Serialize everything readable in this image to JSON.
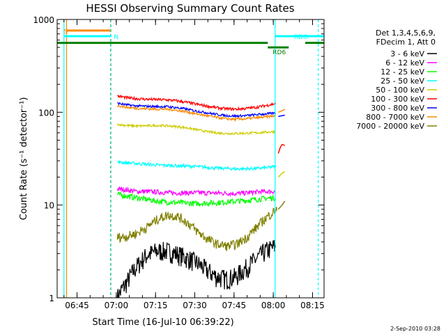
{
  "chart_data": {
    "type": "line",
    "title": "HESSI Observing Summary Count Rates",
    "xlabel": "Start Time (16-Jul-10 06:39:22)",
    "ylabel": "Count Rate (s⁻¹ detector⁻¹)",
    "yscale": "log",
    "ylim": [
      1,
      1000
    ],
    "xlim_minutes": [
      -2,
      100
    ],
    "x_ticks": [
      {
        "label": "06:45",
        "min": 5.6
      },
      {
        "label": "07:00",
        "min": 20.6
      },
      {
        "label": "07:15",
        "min": 35.6
      },
      {
        "label": "07:30",
        "min": 50.6
      },
      {
        "label": "07:45",
        "min": 65.6
      },
      {
        "label": "08:00",
        "min": 80.6
      },
      {
        "label": "08:15",
        "min": 95.6
      }
    ],
    "y_ticks": [
      {
        "label": "1",
        "value": 1
      },
      {
        "label": "10",
        "value": 10
      },
      {
        "label": "100",
        "value": 100
      },
      {
        "label": "1000",
        "value": 1000
      }
    ],
    "legend": {
      "placement": "right",
      "header": [
        "Det 1,3,4,5,6,9,",
        "FDecim 1, Att 0"
      ]
    },
    "series": [
      {
        "name": "3 - 6 keV",
        "color": "#000000",
        "start": 21,
        "end": 81.5,
        "values": [
          1.0,
          1.5,
          2.2,
          2.9,
          3.2,
          3.2,
          3.0,
          2.7,
          2.4,
          2.0,
          1.7,
          1.6,
          1.7,
          2.1,
          2.6,
          3.2,
          3.6
        ],
        "spread": 0.25
      },
      {
        "name": "6 - 12 keV",
        "color": "#ff00ff",
        "start": 21,
        "end": 81.5,
        "values": [
          15,
          14.5,
          14,
          14,
          13.8,
          13.6,
          13.5,
          13.5,
          13.6,
          13.5,
          13.5,
          13.4,
          13.3,
          13.5,
          13.8,
          14,
          14
        ],
        "spread": 0.06
      },
      {
        "name": "12 - 25 keV",
        "color": "#00ff00",
        "start": 21,
        "end": 81.5,
        "values": [
          13,
          12.5,
          12,
          11.5,
          11,
          10.8,
          10.6,
          10.5,
          10.4,
          10.5,
          10.6,
          10.8,
          11,
          11.2,
          11.5,
          11.8,
          12
        ],
        "spread": 0.07
      },
      {
        "name": "25 - 50 keV",
        "color": "#00ffff",
        "start": 21,
        "end": 81.5,
        "values": [
          29,
          28.5,
          28,
          27.5,
          27,
          26.8,
          26.5,
          26.3,
          26,
          25.5,
          25,
          24.8,
          24.5,
          24.6,
          24.8,
          25.2,
          26
        ],
        "spread": 0.04
      },
      {
        "name": "50 - 100 keV",
        "color": "#cccc00",
        "start": 21,
        "end": 81.5,
        "values": [
          74,
          72,
          71,
          71.5,
          72,
          71.5,
          70,
          68,
          65,
          62,
          60,
          59,
          59,
          59.5,
          60,
          61,
          62
        ],
        "spread": 0.03
      },
      {
        "name": "100 - 300 keV",
        "color": "#ff0000",
        "start": 21,
        "end": 81.5,
        "values": [
          150,
          143,
          140,
          138,
          137,
          136,
          133,
          128,
          122,
          117,
          112,
          109,
          108,
          110,
          113,
          118,
          124
        ],
        "spread": 0.035
      },
      {
        "name": "300 - 800 keV",
        "color": "#0000ff",
        "start": 21,
        "end": 81.5,
        "values": [
          125,
          120,
          117,
          116,
          115,
          115,
          112,
          108,
          103,
          99,
          95,
          92,
          91,
          92,
          94,
          96,
          98
        ],
        "spread": 0.03
      },
      {
        "name": "800 - 7000 keV",
        "color": "#ff8800",
        "start": 21,
        "end": 81.5,
        "values": [
          118,
          113,
          110,
          109,
          108,
          108,
          105,
          101,
          96,
          92,
          88,
          85,
          84,
          85,
          87,
          89,
          92
        ],
        "spread": 0.03
      },
      {
        "name": "7000 - 20000 keV",
        "color": "#808000",
        "start": 21,
        "end": 82,
        "values": [
          4.5,
          4.6,
          5,
          5.8,
          7.0,
          7.8,
          7.6,
          6.5,
          5.2,
          4.3,
          3.8,
          3.6,
          3.8,
          4.5,
          5.8,
          7.4,
          9.0
        ],
        "spread": 0.12
      }
    ],
    "tails": [
      {
        "name": "100 - 300 keV",
        "color": "#ff0000",
        "points": [
          [
            82.5,
            36
          ],
          [
            83.3,
            42
          ],
          [
            84,
            45
          ],
          [
            85,
            44
          ]
        ]
      },
      {
        "name": "800 - 7000 keV",
        "color": "#ff8800",
        "points": [
          [
            82.5,
            100
          ],
          [
            84,
            104
          ],
          [
            85,
            108
          ]
        ]
      },
      {
        "name": "300 - 800 keV",
        "color": "#0000ff",
        "points": [
          [
            82.5,
            90
          ],
          [
            84,
            92
          ],
          [
            85,
            93
          ]
        ]
      },
      {
        "name": "50 - 100 keV",
        "color": "#cccc00",
        "points": [
          [
            82.5,
            20
          ],
          [
            84,
            22
          ],
          [
            85,
            23
          ]
        ]
      },
      {
        "name": "7000 - 20000 keV",
        "color": "#808000",
        "points": [
          [
            82.5,
            9
          ],
          [
            84,
            10
          ],
          [
            85,
            11
          ]
        ]
      }
    ],
    "vertical_markers": [
      {
        "min": 0.6,
        "color": "#00ffff",
        "style": "solid"
      },
      {
        "min": 1.6,
        "color": "#ff8800",
        "style": "solid"
      },
      {
        "min": 18.4,
        "color": "#ff8800",
        "style": "dashed"
      },
      {
        "min": 18.6,
        "color": "#00ffff",
        "style": "dashed"
      },
      {
        "min": 81.3,
        "color": "#00ffff",
        "style": "solid"
      },
      {
        "min": 97.8,
        "color": "#00ffff",
        "style": "dashed"
      }
    ],
    "flag_bars": [
      {
        "color": "#ff8800",
        "start": 1.6,
        "end": 18.4,
        "level": 760,
        "label": "S"
      },
      {
        "color": "#00ffff",
        "start": 0.6,
        "end": 18.6,
        "level": 660,
        "label": "N"
      },
      {
        "color": "#008000",
        "start": -2,
        "end": 78.5,
        "level": 560,
        "label": ""
      },
      {
        "color": "#008000",
        "start": 78.5,
        "end": 86.5,
        "level": 500,
        "label": "RD6"
      },
      {
        "color": "#00ffff",
        "start": 81.3,
        "end": 100,
        "level": 660,
        "label": "RDO"
      },
      {
        "color": "#008000",
        "start": 92.8,
        "end": 100,
        "level": 560,
        "label": ""
      }
    ],
    "timestamp": "2-Sep-2010 03:28"
  }
}
